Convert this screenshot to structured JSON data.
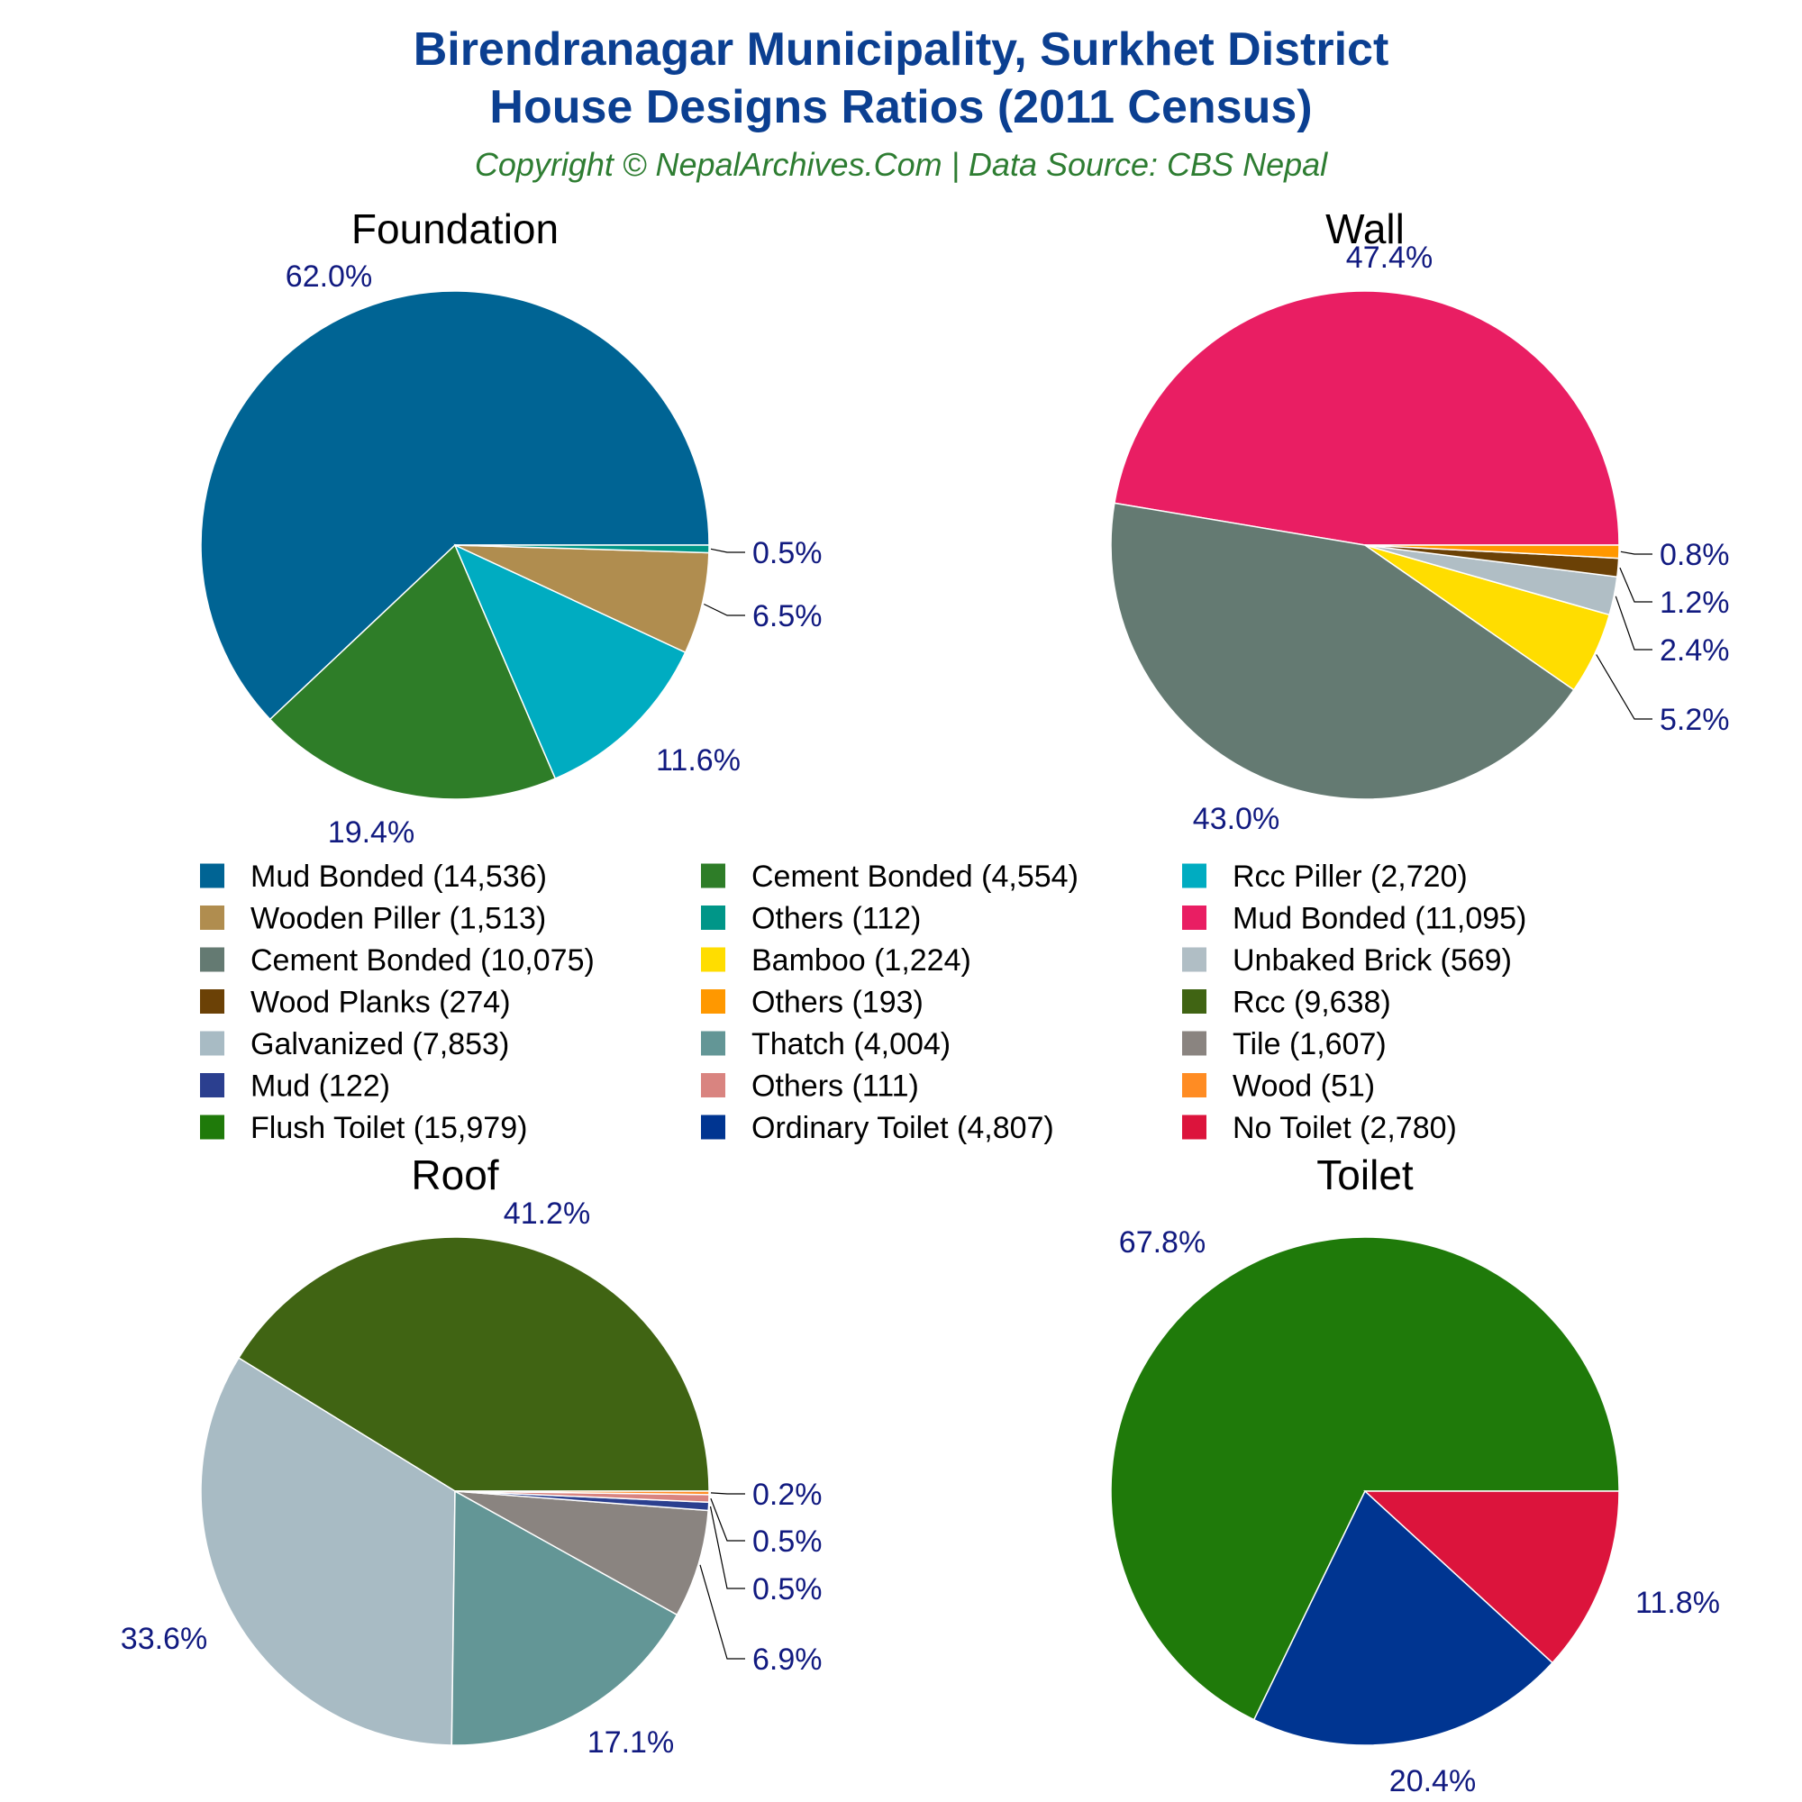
{
  "header": {
    "title_line1": "Birendranagar Municipality, Surkhet District",
    "title_line2": "House Designs Ratios (2011 Census)",
    "subtitle": "Copyright © NepalArchives.Com | Data Source: CBS Nepal"
  },
  "legend": [
    {
      "label": "Mud Bonded (14,536)",
      "color": "#006494"
    },
    {
      "label": "Cement Bonded (4,554)",
      "color": "#2e7d28"
    },
    {
      "label": "Rcc Piller (2,720)",
      "color": "#00acc1"
    },
    {
      "label": "Wooden Piller (1,513)",
      "color": "#b08d4f"
    },
    {
      "label": "Others (112)",
      "color": "#009688"
    },
    {
      "label": "Mud Bonded (11,095)",
      "color": "#e91e63"
    },
    {
      "label": "Cement Bonded (10,075)",
      "color": "#647a72"
    },
    {
      "label": "Bamboo (1,224)",
      "color": "#ffdd00"
    },
    {
      "label": "Unbaked Brick (569)",
      "color": "#b0bec5"
    },
    {
      "label": "Wood Planks (274)",
      "color": "#6b4106"
    },
    {
      "label": "Others (193)",
      "color": "#ff9800"
    },
    {
      "label": "Rcc (9,638)",
      "color": "#406413"
    },
    {
      "label": "Galvanized (7,853)",
      "color": "#a8bbc4"
    },
    {
      "label": "Thatch (4,004)",
      "color": "#639696"
    },
    {
      "label": "Tile (1,607)",
      "color": "#8a8480"
    },
    {
      "label": "Mud (122)",
      "color": "#2b3f8f"
    },
    {
      "label": "Others (111)",
      "color": "#d98480"
    },
    {
      "label": "Wood (51)",
      "color": "#ff8c23"
    },
    {
      "label": "Flush Toilet (15,979)",
      "color": "#1f7a0a"
    },
    {
      "label": "Ordinary Toilet (4,807)",
      "color": "#003591"
    },
    {
      "label": "No Toilet (2,780)",
      "color": "#dc143c"
    }
  ],
  "chart_data": [
    {
      "type": "pie",
      "title": "Foundation",
      "slices": [
        {
          "label": "Mud Bonded",
          "value": 14536,
          "pct": "62.0%",
          "color": "#006494"
        },
        {
          "label": "Cement Bonded",
          "value": 4554,
          "pct": "19.4%",
          "color": "#2e7d28"
        },
        {
          "label": "Rcc Piller",
          "value": 2720,
          "pct": "11.6%",
          "color": "#00acc1"
        },
        {
          "label": "Wooden Piller",
          "value": 1513,
          "pct": "6.5%",
          "color": "#b08d4f"
        },
        {
          "label": "Others",
          "value": 112,
          "pct": "0.5%",
          "color": "#009688"
        }
      ]
    },
    {
      "type": "pie",
      "title": "Wall",
      "slices": [
        {
          "label": "Mud Bonded",
          "value": 11095,
          "pct": "47.4%",
          "color": "#e91e63"
        },
        {
          "label": "Cement Bonded",
          "value": 10075,
          "pct": "43.0%",
          "color": "#647a72"
        },
        {
          "label": "Bamboo",
          "value": 1224,
          "pct": "5.2%",
          "color": "#ffdd00"
        },
        {
          "label": "Unbaked Brick",
          "value": 569,
          "pct": "2.4%",
          "color": "#b0bec5"
        },
        {
          "label": "Wood Planks",
          "value": 274,
          "pct": "1.2%",
          "color": "#6b4106"
        },
        {
          "label": "Others",
          "value": 193,
          "pct": "0.8%",
          "color": "#ff9800"
        }
      ]
    },
    {
      "type": "pie",
      "title": "Roof",
      "slices": [
        {
          "label": "Rcc",
          "value": 9638,
          "pct": "41.2%",
          "color": "#406413"
        },
        {
          "label": "Galvanized",
          "value": 7853,
          "pct": "33.6%",
          "color": "#a8bbc4"
        },
        {
          "label": "Thatch",
          "value": 4004,
          "pct": "17.1%",
          "color": "#639696"
        },
        {
          "label": "Tile",
          "value": 1607,
          "pct": "6.9%",
          "color": "#8a8480"
        },
        {
          "label": "Mud",
          "value": 122,
          "pct": "0.5%",
          "color": "#2b3f8f"
        },
        {
          "label": "Others",
          "value": 111,
          "pct": "0.5%",
          "color": "#d98480"
        },
        {
          "label": "Wood",
          "value": 51,
          "pct": "0.2%",
          "color": "#ff8c23"
        }
      ]
    },
    {
      "type": "pie",
      "title": "Toilet",
      "slices": [
        {
          "label": "Flush Toilet",
          "value": 15979,
          "pct": "67.8%",
          "color": "#1f7a0a"
        },
        {
          "label": "Ordinary Toilet",
          "value": 4807,
          "pct": "20.4%",
          "color": "#003591"
        },
        {
          "label": "No Toilet",
          "value": 2780,
          "pct": "11.8%",
          "color": "#dc143c"
        }
      ]
    }
  ]
}
